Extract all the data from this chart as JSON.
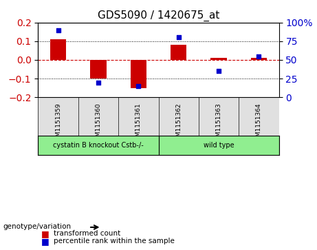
{
  "title": "GDS5090 / 1420675_at",
  "samples": [
    "GSM1151359",
    "GSM1151360",
    "GSM1151361",
    "GSM1151362",
    "GSM1151363",
    "GSM1151364"
  ],
  "bar_values": [
    0.112,
    -0.1,
    -0.15,
    0.082,
    0.01,
    0.01
  ],
  "dot_values_pct": [
    90,
    20,
    15,
    80,
    35,
    55
  ],
  "ylim_left": [
    -0.2,
    0.2
  ],
  "ylim_right": [
    0,
    100
  ],
  "yticks_left": [
    -0.2,
    -0.1,
    0.0,
    0.1,
    0.2
  ],
  "yticks_right": [
    0,
    25,
    50,
    75,
    100
  ],
  "ytick_labels_right": [
    "0",
    "25",
    "50",
    "75",
    "100%"
  ],
  "bar_color": "#cc0000",
  "dot_color": "#0000cc",
  "zero_line_color": "#cc0000",
  "grid_color": "#000000",
  "groups": [
    {
      "label": "cystatin B knockout Cstb-/-",
      "samples": [
        0,
        1,
        2
      ],
      "color": "#90EE90"
    },
    {
      "label": "wild type",
      "samples": [
        3,
        4,
        5
      ],
      "color": "#90EE90"
    }
  ],
  "group_label_prefix": "genotype/variation",
  "legend_bar_label": "transformed count",
  "legend_dot_label": "percentile rank within the sample",
  "bar_width": 0.4,
  "plot_bg_color": "#ffffff",
  "label_area_color": "#c0c0c0",
  "group_area_color": "#90ee90"
}
